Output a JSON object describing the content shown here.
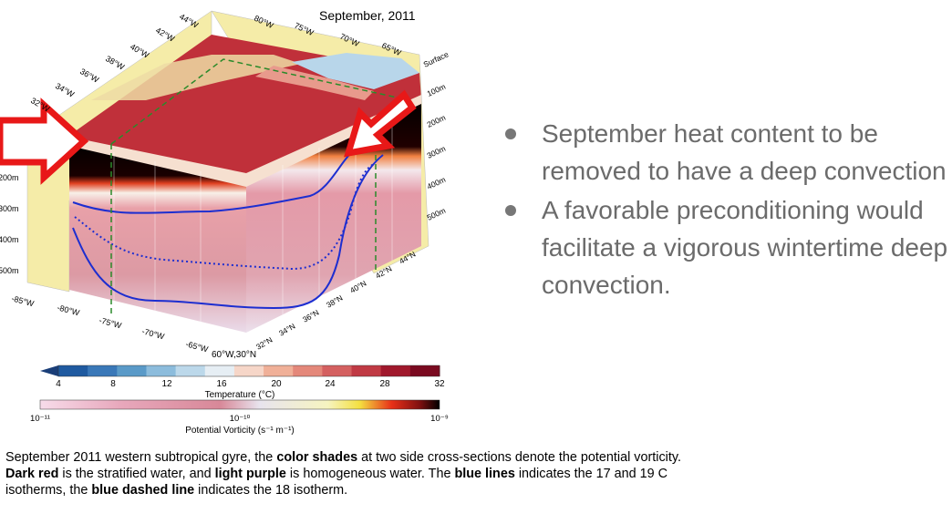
{
  "figure": {
    "title": "September, 2011",
    "lon_labels_top": [
      "44°W",
      "42°W",
      "40°W",
      "38°W",
      "36°W",
      "34°W",
      "32°W",
      "80°W",
      "75°W",
      "70°W",
      "65°W"
    ],
    "depth_labels_right": [
      "Surface",
      "100m",
      "200m",
      "300m",
      "400m",
      "500m"
    ],
    "depth_labels_left": [
      "200m",
      "300m",
      "400m",
      "500m"
    ],
    "lon_labels_bottom": [
      "-85°W",
      "-80°W",
      "-75°W",
      "-70°W",
      "-65°W"
    ],
    "corner_label": "60°W,30°N",
    "lat_labels_bottom": [
      "32°N",
      "34°N",
      "36°N",
      "38°N",
      "40°N",
      "42°N",
      "44°N"
    ],
    "temperature_colorbar": {
      "label": "Temperature (°C)",
      "ticks": [
        "4",
        "8",
        "12",
        "16",
        "20",
        "24",
        "28",
        "32"
      ],
      "colors": [
        "#1f5aa0",
        "#3a78b8",
        "#5a9ac8",
        "#8cbcdc",
        "#bcd8ea",
        "#e6eef4",
        "#f6d6c8",
        "#f0b098",
        "#e4887a",
        "#d46060",
        "#c03a44",
        "#a0182c",
        "#7a0a20"
      ]
    },
    "pv_colorbar": {
      "label": "Potential Vorticity (s⁻¹ m⁻¹)",
      "tick_left": "10⁻¹¹",
      "tick_mid": "10⁻¹⁰",
      "tick_right": "10⁻⁹"
    }
  },
  "bullets": [
    "September heat content to be removed to have a deep convection",
    "A favorable preconditioning would facilitate a vigorous wintertime deep convection."
  ],
  "caption": {
    "p1": "September 2011 western subtropical gyre, the ",
    "b1": "color shades",
    "p2": " at two side cross-sections denote the potential vorticity.  ",
    "b2": "Dark red",
    "p3": " is the stratified water, and ",
    "b3": "light purple",
    "p4": " is homogeneous water. The ",
    "b4": "blue lines",
    "p5": " indicates the 17 and 19 C isotherms, the ",
    "b5": "blue dashed line",
    "p6": " indicates the 18 isotherm."
  }
}
